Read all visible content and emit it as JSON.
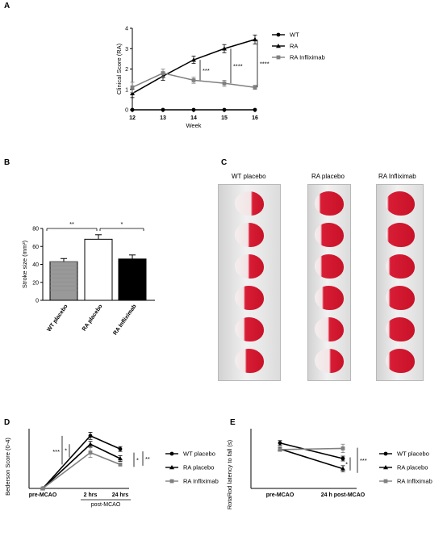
{
  "panels": {
    "A": {
      "letter": "A",
      "chart_data": {
        "type": "line",
        "x": [
          12,
          13,
          14,
          15,
          16
        ],
        "xlabel": "Week",
        "ylabel": "Clinical Score (RA)",
        "xlim": [
          12,
          16
        ],
        "ylim": [
          0,
          4
        ],
        "yticks": [
          0,
          1,
          2,
          3,
          4
        ],
        "series": [
          {
            "name": "WT",
            "color": "#000000",
            "marker": "circle",
            "values": [
              0,
              0,
              0,
              0,
              0
            ],
            "err": [
              0,
              0,
              0,
              0,
              0
            ]
          },
          {
            "name": "RA",
            "color": "#000000",
            "marker": "triangle",
            "values": [
              0.8,
              1.65,
              2.45,
              3.0,
              3.45
            ],
            "err": [
              0.2,
              0.2,
              0.18,
              0.2,
              0.22
            ]
          },
          {
            "name": "RA Infliximab",
            "color": "#808080",
            "marker": "square",
            "values": [
              1.1,
              1.8,
              1.45,
              1.3,
              1.1
            ],
            "err": [
              0.25,
              0.2,
              0.15,
              0.15,
              0.1
            ]
          }
        ],
        "annotations": [
          "***",
          "****",
          "****"
        ],
        "legend": "right"
      }
    },
    "B": {
      "letter": "B",
      "chart_data": {
        "type": "bar",
        "categories": [
          "WT placebo",
          "RA placebo",
          "RA Infliximab"
        ],
        "values": [
          43,
          68,
          46
        ],
        "err": [
          3.5,
          5,
          4.5
        ],
        "colors": [
          "#999999",
          "#ffffff",
          "#000000"
        ],
        "ylabel": "Stroke size (mm³)",
        "ylim": [
          0,
          80
        ],
        "yticks": [
          0,
          20,
          40,
          60,
          80
        ],
        "annotations": [
          "**",
          "*"
        ]
      }
    },
    "C": {
      "letter": "C",
      "labels": [
        "WT placebo",
        "RA placebo",
        "RA Infliximab"
      ]
    },
    "D": {
      "letter": "D",
      "chart_data": {
        "type": "line",
        "categories": [
          "pre-MCAO",
          "2 hrs",
          "24 hrs"
        ],
        "group_label": "post-MCAO",
        "ylabel": "Bederson Score (0-4)",
        "ylim": [
          0,
          2.5
        ],
        "series": [
          {
            "name": "WT placebo",
            "color": "#000000",
            "marker": "circle",
            "values": [
              0,
              2.2,
              1.65
            ],
            "err": [
              0,
              0.15,
              0.1
            ]
          },
          {
            "name": "RA placebo",
            "color": "#000000",
            "marker": "triangle",
            "values": [
              0,
              1.85,
              1.25
            ],
            "err": [
              0,
              0.12,
              0.12
            ]
          },
          {
            "name": "RA Infliximab",
            "color": "#808080",
            "marker": "square",
            "values": [
              0,
              1.5,
              1.0
            ],
            "err": [
              0,
              0.2,
              0.05
            ]
          }
        ],
        "annotations": [
          "***",
          "*",
          "*",
          "**"
        ],
        "legend": "right"
      }
    },
    "E": {
      "letter": "E",
      "chart_data": {
        "type": "line",
        "categories": [
          "pre-MCAO",
          "24 h post-MCAO"
        ],
        "ylabel": "RotaRod latency to fall (s)",
        "ylim": [
          0,
          100
        ],
        "series": [
          {
            "name": "WT placebo",
            "color": "#000000",
            "marker": "circle",
            "values": [
              76,
              50
            ],
            "err": [
              4,
              4
            ]
          },
          {
            "name": "RA placebo",
            "color": "#000000",
            "marker": "triangle",
            "values": [
              66,
              33
            ],
            "err": [
              3,
              5
            ]
          },
          {
            "name": "RA Infliximab",
            "color": "#808080",
            "marker": "square",
            "values": [
              65,
              67
            ],
            "err": [
              3,
              7
            ]
          }
        ],
        "annotations": [
          "*",
          "***"
        ],
        "legend": "right"
      }
    }
  }
}
